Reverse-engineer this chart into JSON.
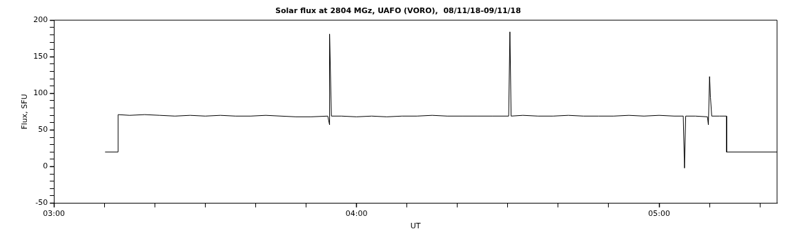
{
  "chart_data": {
    "type": "line",
    "title": "Solar flux at 2804 MGz, UAFO (VORO),  08/11/18-09/11/18",
    "xlabel": "UT",
    "ylabel": "Flux, SFU",
    "xlim": [
      3,
      5.39
    ],
    "ylim": [
      -50,
      200
    ],
    "xticks": [
      {
        "value": 3,
        "label": "03:00"
      },
      {
        "value": 3.1667,
        "label": null
      },
      {
        "value": 3.3333,
        "label": null
      },
      {
        "value": 3.5,
        "label": null
      },
      {
        "value": 3.6667,
        "label": null
      },
      {
        "value": 3.8333,
        "label": null
      },
      {
        "value": 4,
        "label": "04:00"
      },
      {
        "value": 4.1667,
        "label": null
      },
      {
        "value": 4.3333,
        "label": null
      },
      {
        "value": 4.5,
        "label": null
      },
      {
        "value": 4.6667,
        "label": null
      },
      {
        "value": 4.8333,
        "label": null
      },
      {
        "value": 5,
        "label": "05:00"
      },
      {
        "value": 5.1667,
        "label": null
      },
      {
        "value": 5.3333,
        "label": null
      }
    ],
    "yticks": [
      -50,
      {
        "value": -40,
        "label": null
      },
      {
        "value": -30,
        "label": null
      },
      {
        "value": -20,
        "label": null
      },
      {
        "value": -10,
        "label": null
      },
      0,
      {
        "value": 10,
        "label": null
      },
      {
        "value": 20,
        "label": null
      },
      {
        "value": 30,
        "label": null
      },
      {
        "value": 40,
        "label": null
      },
      50,
      {
        "value": 60,
        "label": null
      },
      {
        "value": 70,
        "label": null
      },
      {
        "value": 80,
        "label": null
      },
      {
        "value": 90,
        "label": null
      },
      100,
      {
        "value": 110,
        "label": null
      },
      {
        "value": 120,
        "label": null
      },
      {
        "value": 130,
        "label": null
      },
      {
        "value": 140,
        "label": null
      },
      150,
      {
        "value": 160,
        "label": null
      },
      {
        "value": 170,
        "label": null
      },
      {
        "value": 180,
        "label": null
      },
      {
        "value": 190,
        "label": null
      },
      200
    ],
    "grid": false,
    "legend": false,
    "marker": "none",
    "line_style": "solid",
    "series": [
      {
        "color": "#000000",
        "x": [
          3.169,
          3.212,
          3.212,
          3.25,
          3.3,
          3.35,
          3.4,
          3.45,
          3.5,
          3.55,
          3.6,
          3.65,
          3.7,
          3.75,
          3.8,
          3.85,
          3.905,
          3.911,
          3.911,
          3.917,
          3.95,
          4.0,
          4.05,
          4.1,
          4.15,
          4.2,
          4.25,
          4.3,
          4.35,
          4.4,
          4.45,
          4.503,
          4.507,
          4.511,
          4.55,
          4.6,
          4.65,
          4.7,
          4.75,
          4.8,
          4.85,
          4.9,
          4.95,
          5.0,
          5.05,
          5.08,
          5.084,
          5.088,
          5.12,
          5.16,
          5.163,
          5.167,
          5.17,
          5.174,
          5.2,
          5.223,
          5.223,
          5.39
        ],
        "values": [
          20,
          20,
          71,
          70,
          71,
          70,
          69,
          70,
          69,
          70,
          69,
          69,
          70,
          69,
          68,
          68,
          69,
          57,
          181,
          69,
          69,
          68,
          69,
          68,
          69,
          69,
          70,
          69,
          69,
          69,
          69,
          69,
          184,
          69,
          70,
          69,
          69,
          70,
          69,
          69,
          69,
          70,
          69,
          70,
          69,
          69,
          -2,
          69,
          69,
          68,
          57,
          123,
          94,
          69,
          69,
          69,
          20,
          20
        ]
      }
    ]
  }
}
